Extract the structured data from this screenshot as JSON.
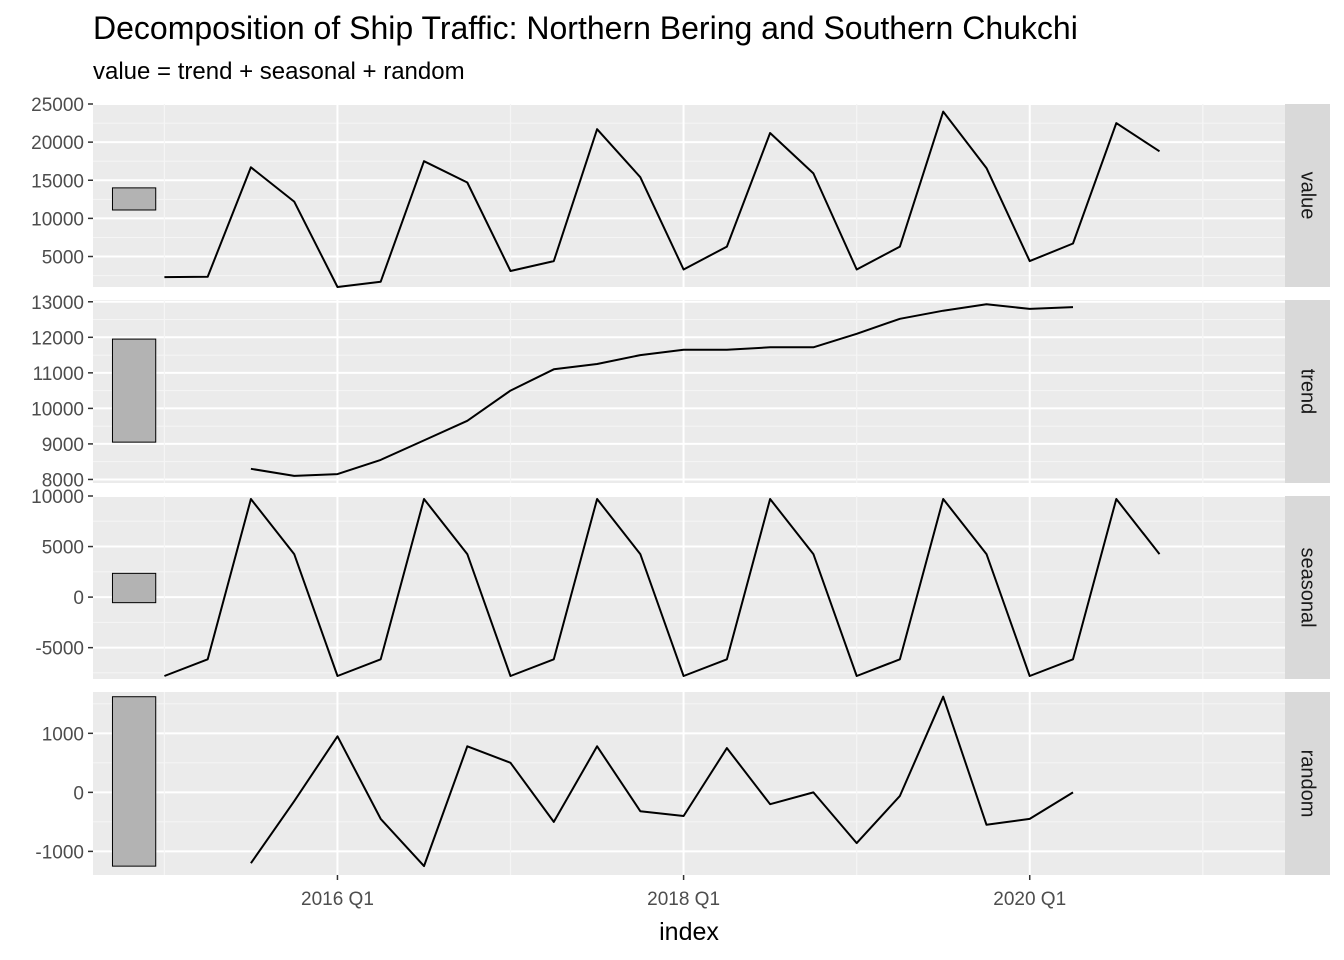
{
  "chart_data": {
    "type": "line",
    "title": "Decomposition of Ship Traffic: Northern Bering and Southern Chukchi",
    "subtitle": "value = trend + seasonal + random",
    "xlabel": "index",
    "x": [
      "2015 Q1",
      "2015 Q2",
      "2015 Q3",
      "2015 Q4",
      "2016 Q1",
      "2016 Q2",
      "2016 Q3",
      "2016 Q4",
      "2017 Q1",
      "2017 Q2",
      "2017 Q3",
      "2017 Q4",
      "2018 Q1",
      "2018 Q2",
      "2018 Q3",
      "2018 Q4",
      "2019 Q1",
      "2019 Q2",
      "2019 Q3",
      "2019 Q4",
      "2020 Q1",
      "2020 Q2",
      "2020 Q3",
      "2020 Q4"
    ],
    "xticks": [
      "2016 Q1",
      "2018 Q1",
      "2020 Q1"
    ],
    "grid": true,
    "panels": [
      {
        "name": "value",
        "ylim": [
          1000,
          25000
        ],
        "yticks": [
          5000,
          10000,
          15000,
          20000,
          25000
        ],
        "scale_bar": [
          11100,
          14000
        ],
        "values": [
          2300,
          2350,
          16700,
          12200,
          1000,
          1700,
          17500,
          14700,
          3100,
          4400,
          21700,
          15400,
          3300,
          6300,
          21200,
          15900,
          3300,
          6300,
          24000,
          16600,
          4400,
          6700,
          22500,
          18800
        ]
      },
      {
        "name": "trend",
        "ylim": [
          7900,
          13050
        ],
        "yticks": [
          8000,
          9000,
          10000,
          11000,
          12000,
          13000
        ],
        "scale_bar": [
          9050,
          11950
        ],
        "values": [
          null,
          null,
          8300,
          8100,
          8150,
          8550,
          9100,
          9650,
          10500,
          11100,
          11250,
          11500,
          11650,
          11650,
          11720,
          11720,
          12100,
          12520,
          12750,
          12930,
          12800,
          12850,
          null,
          null
        ]
      },
      {
        "name": "seasonal",
        "ylim": [
          -8100,
          10000
        ],
        "yticks": [
          -5000,
          0,
          5000,
          10000
        ],
        "scale_bar": [
          -550,
          2350
        ],
        "values": [
          -7800,
          -6150,
          9700,
          4250,
          -7800,
          -6150,
          9700,
          4250,
          -7800,
          -6150,
          9700,
          4250,
          -7800,
          -6150,
          9700,
          4250,
          -7800,
          -6150,
          9700,
          4250,
          -7800,
          -6150,
          9700,
          4250
        ]
      },
      {
        "name": "random",
        "ylim": [
          -1400,
          1700
        ],
        "yticks": [
          -1000,
          0,
          1000
        ],
        "scale_bar": [
          -1250,
          1620
        ],
        "values": [
          null,
          null,
          -1200,
          -150,
          950,
          -450,
          -1250,
          780,
          500,
          -500,
          780,
          -320,
          -400,
          750,
          -200,
          0,
          -860,
          -60,
          1620,
          -550,
          -450,
          0,
          null,
          null
        ]
      }
    ]
  }
}
